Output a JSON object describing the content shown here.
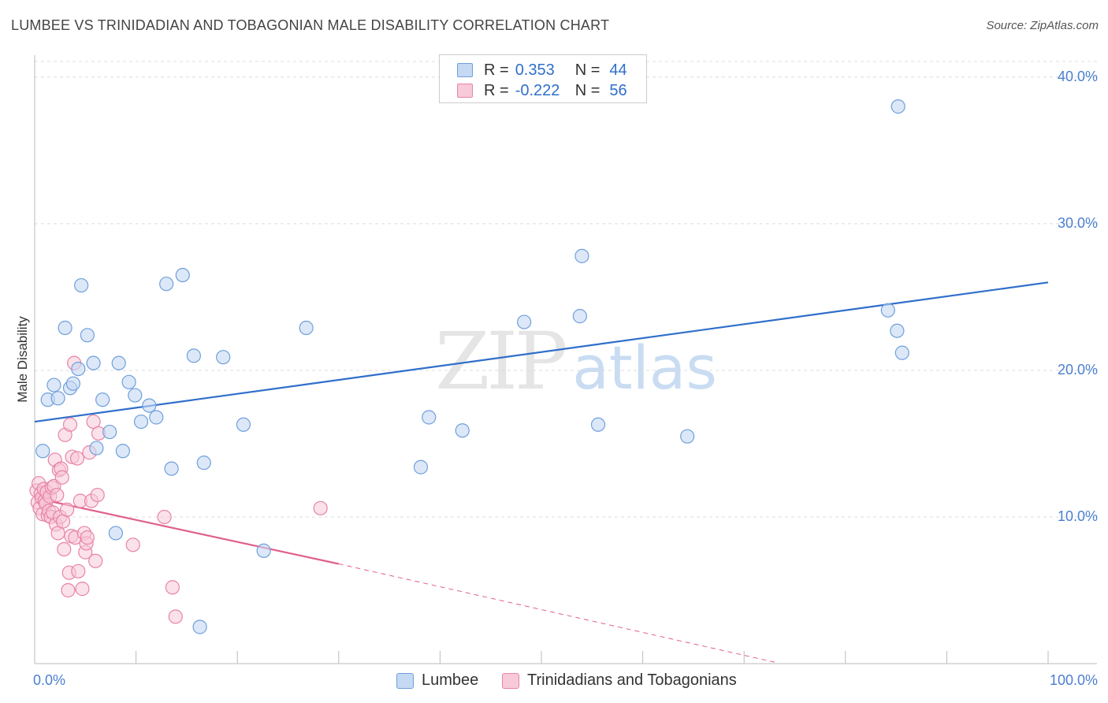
{
  "chart_data": {
    "type": "scatter",
    "title": "LUMBEE VS TRINIDADIAN AND TOBAGONIAN MALE DISABILITY CORRELATION CHART",
    "source": "Source: ZipAtlas.com",
    "ylabel": "Male Disability",
    "xlabel": "",
    "xlim": [
      0,
      100
    ],
    "ylim": [
      0,
      41.5
    ],
    "x_tick_labels": [
      "0.0%",
      "100.0%"
    ],
    "y_ticks": [
      10,
      20,
      30,
      40
    ],
    "y_tick_labels": [
      "10.0%",
      "20.0%",
      "30.0%",
      "40.0%"
    ],
    "grid": true,
    "watermark": {
      "zip": "ZIP",
      "atlas": "atlas"
    },
    "colors": {
      "lumbee": "#6f9fdc",
      "lumbee_fill": "#c5d9f3",
      "lumbee_line": "#2f6fca",
      "trini": "#e884a6",
      "trini_fill": "#f8c9d8",
      "trini_line": "#e0608e"
    },
    "legend": {
      "r_label": "R =",
      "n_label": "N =",
      "entries": [
        {
          "name": "Lumbee",
          "r": "0.353",
          "n": "44"
        },
        {
          "name": "Trinidadians and Tobagonians",
          "r": "-0.222",
          "n": "56"
        }
      ]
    },
    "series": [
      {
        "name": "Lumbee",
        "trend": {
          "x": [
            0,
            100
          ],
          "y": [
            16.5,
            26.0
          ]
        },
        "points": [
          [
            0.8,
            14.5
          ],
          [
            1.3,
            18.0
          ],
          [
            1.9,
            19.0
          ],
          [
            2.3,
            18.1
          ],
          [
            3.0,
            22.9
          ],
          [
            3.5,
            18.8
          ],
          [
            3.8,
            19.1
          ],
          [
            4.3,
            20.1
          ],
          [
            4.6,
            25.8
          ],
          [
            5.2,
            22.4
          ],
          [
            5.8,
            20.5
          ],
          [
            6.1,
            14.7
          ],
          [
            6.7,
            18.0
          ],
          [
            7.4,
            15.8
          ],
          [
            8.0,
            8.9
          ],
          [
            8.3,
            20.5
          ],
          [
            8.7,
            14.5
          ],
          [
            9.3,
            19.2
          ],
          [
            9.9,
            18.3
          ],
          [
            10.5,
            16.5
          ],
          [
            11.3,
            17.6
          ],
          [
            12.0,
            16.8
          ],
          [
            13.0,
            25.9
          ],
          [
            13.5,
            13.3
          ],
          [
            14.6,
            26.5
          ],
          [
            15.7,
            21.0
          ],
          [
            16.3,
            2.5
          ],
          [
            16.7,
            13.7
          ],
          [
            18.6,
            20.9
          ],
          [
            20.6,
            16.3
          ],
          [
            22.6,
            7.7
          ],
          [
            26.8,
            22.9
          ],
          [
            38.1,
            13.4
          ],
          [
            38.9,
            16.8
          ],
          [
            42.2,
            15.9
          ],
          [
            48.3,
            23.3
          ],
          [
            53.8,
            23.7
          ],
          [
            54.0,
            27.8
          ],
          [
            55.6,
            16.3
          ],
          [
            64.4,
            15.5
          ],
          [
            85.1,
            22.7
          ],
          [
            85.6,
            21.2
          ],
          [
            84.2,
            24.1
          ],
          [
            85.2,
            38.0
          ]
        ]
      },
      {
        "name": "Trinidadians and Tobagonians",
        "trend": {
          "x": [
            0,
            30
          ],
          "y": [
            11.3,
            6.8
          ]
        },
        "trend_dashed": {
          "x": [
            30,
            73
          ],
          "y": [
            6.8,
            0.1
          ]
        },
        "points": [
          [
            0.2,
            11.8
          ],
          [
            0.3,
            11.0
          ],
          [
            0.4,
            12.3
          ],
          [
            0.5,
            10.6
          ],
          [
            0.6,
            11.6
          ],
          [
            0.7,
            11.3
          ],
          [
            0.8,
            10.2
          ],
          [
            0.9,
            11.9
          ],
          [
            1.0,
            11.1
          ],
          [
            1.1,
            10.9
          ],
          [
            1.2,
            11.7
          ],
          [
            1.3,
            10.1
          ],
          [
            1.4,
            10.4
          ],
          [
            1.5,
            11.4
          ],
          [
            1.6,
            10.0
          ],
          [
            1.7,
            12.0
          ],
          [
            1.8,
            10.3
          ],
          [
            1.9,
            12.1
          ],
          [
            2.0,
            13.9
          ],
          [
            2.1,
            9.5
          ],
          [
            2.2,
            11.5
          ],
          [
            2.3,
            8.9
          ],
          [
            2.4,
            13.2
          ],
          [
            2.5,
            10.0
          ],
          [
            2.6,
            13.3
          ],
          [
            2.7,
            12.7
          ],
          [
            2.8,
            9.7
          ],
          [
            2.9,
            7.8
          ],
          [
            3.0,
            15.6
          ],
          [
            3.2,
            10.5
          ],
          [
            3.3,
            5.0
          ],
          [
            3.4,
            6.2
          ],
          [
            3.5,
            16.3
          ],
          [
            3.6,
            8.7
          ],
          [
            3.7,
            14.1
          ],
          [
            3.9,
            20.5
          ],
          [
            4.0,
            8.6
          ],
          [
            4.2,
            14.0
          ],
          [
            4.3,
            6.3
          ],
          [
            4.5,
            11.1
          ],
          [
            4.7,
            5.1
          ],
          [
            4.9,
            8.9
          ],
          [
            5.0,
            7.6
          ],
          [
            5.1,
            8.2
          ],
          [
            5.2,
            8.6
          ],
          [
            5.4,
            14.4
          ],
          [
            5.6,
            11.1
          ],
          [
            5.8,
            16.5
          ],
          [
            6.0,
            7.0
          ],
          [
            6.2,
            11.5
          ],
          [
            6.3,
            15.7
          ],
          [
            9.7,
            8.1
          ],
          [
            12.8,
            10.0
          ],
          [
            13.6,
            5.2
          ],
          [
            13.9,
            3.2
          ],
          [
            28.2,
            10.6
          ]
        ]
      }
    ]
  }
}
